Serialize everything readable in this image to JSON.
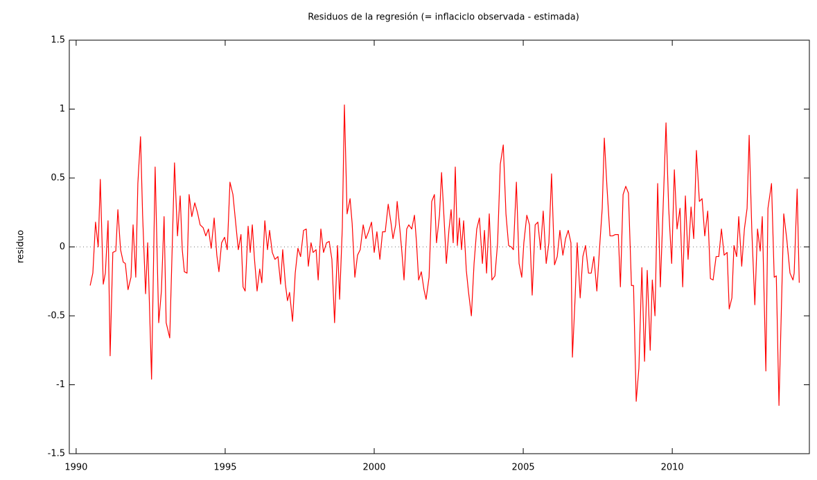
{
  "chart_data": {
    "type": "line",
    "title": "Residuos de la regresión (= inflaciclo observada - estimada)",
    "y_label": "residuo",
    "series": [
      {
        "name": "residuo",
        "color": "#ff0000",
        "x": [
          1990.47,
          1990.56,
          1990.65,
          1990.74,
          1990.81,
          1990.91,
          1990.98,
          1991.07,
          1991.14,
          1991.23,
          1991.33,
          1991.4,
          1991.49,
          1991.58,
          1991.65,
          1991.74,
          1991.84,
          1991.91,
          1992.0,
          1992.07,
          1992.16,
          1992.23,
          1992.33,
          1992.4,
          1992.53,
          1992.65,
          1992.77,
          1992.86,
          1992.95,
          1993.02,
          1993.14,
          1993.3,
          1993.4,
          1993.49,
          1993.56,
          1993.63,
          1993.72,
          1993.79,
          1993.88,
          1993.98,
          1994.07,
          1994.16,
          1994.26,
          1994.35,
          1994.44,
          1994.53,
          1994.63,
          1994.72,
          1994.79,
          1994.88,
          1994.98,
          1995.07,
          1995.16,
          1995.26,
          1995.35,
          1995.44,
          1995.53,
          1995.6,
          1995.67,
          1995.77,
          1995.84,
          1995.91,
          1995.98,
          1996.07,
          1996.16,
          1996.23,
          1996.33,
          1996.42,
          1996.49,
          1996.58,
          1996.67,
          1996.77,
          1996.86,
          1996.93,
          1997.02,
          1997.09,
          1997.16,
          1997.26,
          1997.35,
          1997.44,
          1997.53,
          1997.63,
          1997.72,
          1997.79,
          1997.88,
          1997.95,
          1998.05,
          1998.12,
          1998.21,
          1998.3,
          1998.4,
          1998.49,
          1998.58,
          1998.67,
          1998.77,
          1998.84,
          1998.93,
          1999.0,
          1999.09,
          1999.19,
          1999.26,
          1999.35,
          1999.44,
          1999.53,
          1999.63,
          1999.72,
          1999.81,
          1999.91,
          2000.0,
          2000.09,
          2000.19,
          2000.28,
          2000.37,
          2000.47,
          2000.56,
          2000.63,
          2000.72,
          2000.77,
          2000.86,
          2000.93,
          2001.0,
          2001.09,
          2001.16,
          2001.26,
          2001.35,
          2001.42,
          2001.49,
          2001.58,
          2001.67,
          2001.74,
          2001.84,
          2001.93,
          2002.02,
          2002.09,
          2002.19,
          2002.26,
          2002.35,
          2002.42,
          2002.51,
          2002.58,
          2002.65,
          2002.72,
          2002.79,
          2002.86,
          2002.93,
          2003.0,
          2003.09,
          2003.16,
          2003.26,
          2003.35,
          2003.44,
          2003.53,
          2003.63,
          2003.7,
          2003.77,
          2003.86,
          2003.95,
          2004.05,
          2004.14,
          2004.23,
          2004.33,
          2004.42,
          2004.51,
          2004.6,
          2004.67,
          2004.77,
          2004.86,
          2004.95,
          2005.02,
          2005.12,
          2005.21,
          2005.3,
          2005.4,
          2005.49,
          2005.58,
          2005.67,
          2005.77,
          2005.86,
          2005.95,
          2006.05,
          2006.14,
          2006.23,
          2006.33,
          2006.42,
          2006.51,
          2006.6,
          2006.65,
          2006.74,
          2006.81,
          2006.91,
          2007.0,
          2007.09,
          2007.19,
          2007.28,
          2007.37,
          2007.47,
          2007.56,
          2007.65,
          2007.72,
          2007.81,
          2007.91,
          2008.0,
          2008.09,
          2008.19,
          2008.26,
          2008.35,
          2008.44,
          2008.53,
          2008.63,
          2008.7,
          2008.79,
          2008.88,
          2008.98,
          2009.07,
          2009.16,
          2009.26,
          2009.33,
          2009.42,
          2009.51,
          2009.6,
          2009.7,
          2009.79,
          2009.88,
          2009.98,
          2010.07,
          2010.16,
          2010.26,
          2010.35,
          2010.44,
          2010.53,
          2010.63,
          2010.72,
          2010.81,
          2010.91,
          2011.0,
          2011.09,
          2011.19,
          2011.28,
          2011.37,
          2011.47,
          2011.56,
          2011.65,
          2011.74,
          2011.84,
          2011.91,
          2012.0,
          2012.07,
          2012.16,
          2012.23,
          2012.33,
          2012.42,
          2012.51,
          2012.58,
          2012.67,
          2012.77,
          2012.86,
          2012.95,
          2013.02,
          2013.14,
          2013.21,
          2013.33,
          2013.42,
          2013.49,
          2013.58,
          2013.74,
          2013.84,
          2013.95,
          2014.05,
          2014.09,
          2014.19,
          2014.26
        ],
        "values": [
          -0.28,
          -0.19,
          0.18,
          0,
          0.49,
          -0.27,
          -0.19,
          0.19,
          -0.79,
          -0.04,
          -0.03,
          0.27,
          -0.02,
          -0.11,
          -0.12,
          -0.31,
          -0.22,
          0.16,
          -0.22,
          0.46,
          0.8,
          0.23,
          -0.34,
          0.03,
          -0.96,
          0.58,
          -0.55,
          -0.32,
          0.22,
          -0.55,
          -0.66,
          0.61,
          0.08,
          0.37,
          -0.02,
          -0.18,
          -0.19,
          0.38,
          0.22,
          0.32,
          0.25,
          0.16,
          0.14,
          0.08,
          0.13,
          -0.01,
          0.21,
          -0.06,
          -0.18,
          0.03,
          0.07,
          -0.02,
          0.47,
          0.38,
          0.18,
          -0.02,
          0.09,
          -0.29,
          -0.32,
          0.15,
          -0.04,
          0.16,
          -0.08,
          -0.32,
          -0.16,
          -0.26,
          0.19,
          -0.02,
          0.12,
          -0.04,
          -0.09,
          -0.07,
          -0.27,
          -0.02,
          -0.27,
          -0.39,
          -0.33,
          -0.54,
          -0.19,
          -0.01,
          -0.07,
          0.12,
          0.13,
          -0.14,
          0.03,
          -0.04,
          -0.02,
          -0.24,
          0.13,
          -0.04,
          0.03,
          0.04,
          -0.09,
          -0.55,
          0.01,
          -0.38,
          0.14,
          1.03,
          0.24,
          0.35,
          0.17,
          -0.22,
          -0.06,
          -0.02,
          0.16,
          0.06,
          0.11,
          0.18,
          -0.04,
          0.11,
          -0.09,
          0.11,
          0.11,
          0.31,
          0.18,
          0.06,
          0.16,
          0.33,
          0.13,
          -0.04,
          -0.24,
          0.13,
          0.16,
          0.13,
          0.23,
          0.03,
          -0.24,
          -0.18,
          -0.31,
          -0.38,
          -0.22,
          0.33,
          0.38,
          0.03,
          0.23,
          0.54,
          0.18,
          -0.12,
          0.13,
          0.27,
          0.03,
          0.58,
          0.01,
          0.21,
          -0.02,
          0.19,
          -0.17,
          -0.32,
          -0.5,
          -0.12,
          0.13,
          0.21,
          -0.12,
          0.12,
          -0.19,
          0.24,
          -0.24,
          -0.21,
          0.03,
          0.6,
          0.74,
          0.24,
          0.01,
          0,
          -0.02,
          0.47,
          -0.12,
          -0.22,
          0.03,
          0.23,
          0.16,
          -0.35,
          0.16,
          0.18,
          -0.02,
          0.26,
          -0.12,
          0.03,
          0.53,
          -0.13,
          -0.07,
          0.12,
          -0.06,
          0.06,
          0.12,
          0.03,
          -0.8,
          -0.37,
          0.03,
          -0.37,
          -0.07,
          0.01,
          -0.19,
          -0.19,
          -0.07,
          -0.32,
          -0.01,
          0.28,
          0.79,
          0.43,
          0.08,
          0.08,
          0.09,
          0.09,
          -0.29,
          0.38,
          0.44,
          0.39,
          -0.28,
          -0.28,
          -1.12,
          -0.88,
          -0.15,
          -0.83,
          -0.17,
          -0.75,
          -0.24,
          -0.5,
          0.46,
          -0.29,
          0.33,
          0.9,
          0.28,
          -0.12,
          0.56,
          0.13,
          0.28,
          -0.29,
          0.37,
          -0.09,
          0.29,
          0.06,
          0.7,
          0.33,
          0.35,
          0.08,
          0.26,
          -0.23,
          -0.24,
          -0.07,
          -0.07,
          0.13,
          -0.06,
          -0.04,
          -0.45,
          -0.37,
          0.01,
          -0.07,
          0.22,
          -0.14,
          0.13,
          0.28,
          0.81,
          0.11,
          -0.42,
          0.13,
          -0.03,
          0.22,
          -0.9,
          0.28,
          0.46,
          -0.22,
          -0.21,
          -1.15,
          0.24,
          0.06,
          -0.19,
          -0.24,
          -0.19,
          0.42,
          -0.26
        ]
      }
    ],
    "xlim": [
      1989.77,
      2014.6
    ],
    "xticks": [
      1990,
      1995,
      2000,
      2005,
      2010
    ],
    "ylim": [
      -1.5,
      1.5
    ],
    "yticks": [
      -1.5,
      -1,
      -0.5,
      0,
      0.5,
      1,
      1.5
    ],
    "zero_line": true
  }
}
